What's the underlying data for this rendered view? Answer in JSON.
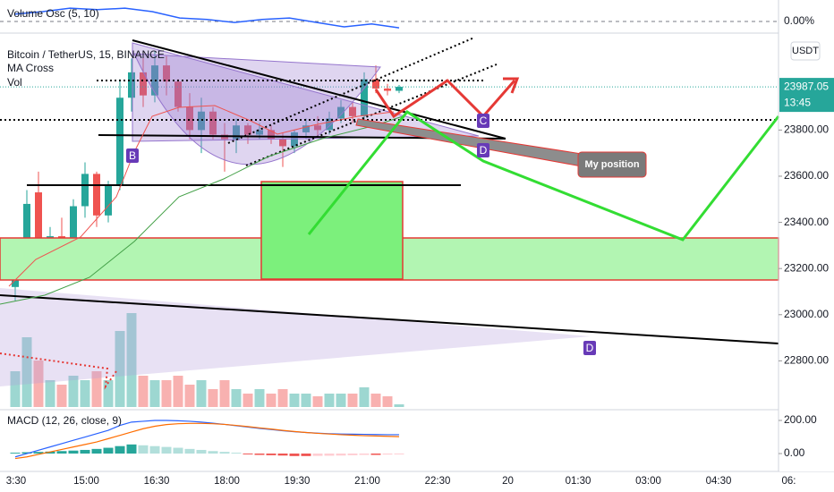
{
  "chart_data": {
    "type": "candlestick",
    "title": "Bitcoin / TetherUS, 15, BINANCE",
    "indicators": [
      "MA Cross",
      "Vol"
    ],
    "x_labels": [
      "3:30",
      "15:00",
      "16:30",
      "18:00",
      "19:30",
      "21:00",
      "22:30",
      "20",
      "01:30",
      "03:00",
      "04:30",
      "06:"
    ],
    "open": [
      23120,
      23220,
      23530,
      23200,
      23340,
      23280,
      23470,
      23610,
      23430,
      23560,
      23940,
      24050,
      23950,
      24080,
      24010,
      23900,
      23800,
      23880,
      23780,
      23760,
      23820,
      23780,
      23800,
      23760,
      23730,
      23790,
      23820,
      23800,
      23850,
      23900,
      23860,
      24020,
      23980,
      23970
    ],
    "high": [
      23260,
      23540,
      23620,
      23380,
      23420,
      23500,
      23660,
      23620,
      23580,
      24020,
      24110,
      24140,
      24140,
      24120,
      24020,
      23960,
      23940,
      23900,
      23830,
      23850,
      23830,
      23830,
      23820,
      23790,
      23800,
      23850,
      23860,
      23880,
      23930,
      23920,
      24050,
      24080,
      24000,
      23995
    ],
    "low": [
      23060,
      23160,
      23170,
      23150,
      23240,
      23260,
      23420,
      23380,
      23400,
      23540,
      23880,
      23900,
      23920,
      23950,
      23880,
      23760,
      23700,
      23760,
      23620,
      23700,
      23740,
      23760,
      23740,
      23640,
      23700,
      23760,
      23770,
      23780,
      23830,
      23830,
      23840,
      23960,
      23950,
      23960
    ],
    "close": [
      23230,
      23480,
      23200,
      23340,
      23280,
      23470,
      23610,
      23430,
      23560,
      23940,
      24050,
      23950,
      24080,
      24010,
      23900,
      23800,
      23880,
      23780,
      23760,
      23820,
      23780,
      23800,
      23760,
      23730,
      23790,
      23820,
      23800,
      23850,
      23900,
      23860,
      24020,
      23980,
      23970,
      23987.05
    ],
    "up_color": "#26a69a",
    "down_color": "#ef5350",
    "ylim": [
      22600,
      24220
    ],
    "yticks": [
      {
        "value": 22800,
        "label": "22800.00"
      },
      {
        "value": 23000,
        "label": "23000.00"
      },
      {
        "value": 23200,
        "label": "23200.00"
      },
      {
        "value": 23400,
        "label": "23400.00"
      },
      {
        "value": 23600,
        "label": "23600.00"
      },
      {
        "value": 23800,
        "label": "23800.00"
      }
    ],
    "last_price": 23987.05,
    "countdown": "13:45",
    "currency": "USDT",
    "volume": {
      "values": [
        40,
        78,
        52,
        30,
        25,
        35,
        30,
        40,
        30,
        85,
        105,
        35,
        30,
        30,
        35,
        25,
        30,
        20,
        30,
        20,
        15,
        20,
        15,
        20,
        15,
        15,
        12,
        15,
        15,
        15,
        22,
        15,
        12,
        3
      ],
      "ylim": [
        0,
        120
      ]
    },
    "macd": {
      "title": "MACD (12, 26, close, 9)",
      "histogram": [
        5,
        8,
        10,
        12,
        15,
        18,
        22,
        28,
        35,
        45,
        55,
        50,
        45,
        40,
        35,
        28,
        22,
        15,
        10,
        5,
        -5,
        -8,
        -10,
        -12,
        -15,
        -15,
        -14,
        -13,
        -12,
        -10,
        -8,
        -8,
        -6,
        -5
      ],
      "macd": [
        -20,
        0,
        20,
        40,
        60,
        80,
        100,
        120,
        140,
        170,
        190,
        195,
        200,
        200,
        198,
        195,
        190,
        183,
        176,
        168,
        160,
        152,
        145,
        138,
        132,
        127,
        123,
        120,
        118,
        117,
        116,
        115,
        114,
        114
      ],
      "signal": [
        -30,
        -20,
        -5,
        10,
        25,
        40,
        55,
        70,
        90,
        110,
        130,
        150,
        165,
        175,
        180,
        182,
        182,
        180,
        176,
        170,
        163,
        155,
        148,
        140,
        133,
        127,
        122,
        118,
        114,
        111,
        108,
        106,
        104,
        102
      ],
      "ylim": [
        -97,
        254
      ],
      "yticks": [
        {
          "value": 0,
          "label": "0.00"
        },
        {
          "value": 200,
          "label": "200.00"
        }
      ]
    },
    "volume_osc": {
      "title": "Volume Osc (5, 10)",
      "values": [
        15,
        20,
        27,
        24,
        27,
        20,
        7,
        4,
        -2,
        4,
        7,
        -2,
        -11,
        -5,
        -13
      ],
      "ylim": [
        -20,
        40
      ],
      "yticks": [
        {
          "value": 0,
          "label": "0.00%"
        }
      ]
    },
    "annotations": [
      "B",
      "C",
      "D",
      "D",
      "My position"
    ]
  }
}
